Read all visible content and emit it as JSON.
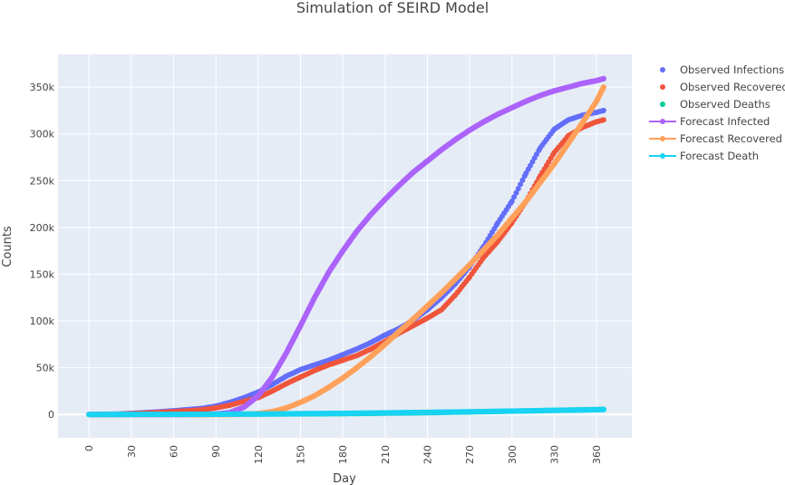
{
  "chart_data": {
    "type": "scatter",
    "title": "Simulation of SEIRD Model",
    "xlabel": "Day",
    "ylabel": "Counts",
    "xlim": [
      -22,
      385
    ],
    "ylim": [
      -25000,
      385000
    ],
    "x_ticks": [
      0,
      30,
      60,
      90,
      120,
      150,
      180,
      210,
      240,
      270,
      300,
      330,
      360
    ],
    "x_tick_labels": [
      "0",
      "30",
      "60",
      "90",
      "120",
      "150",
      "180",
      "210",
      "240",
      "270",
      "300",
      "330",
      "360"
    ],
    "y_ticks": [
      0,
      50000,
      100000,
      150000,
      200000,
      250000,
      300000,
      350000
    ],
    "y_tick_labels": [
      "0",
      "50k",
      "100k",
      "150k",
      "200k",
      "250k",
      "300k",
      "350k"
    ],
    "grid": true,
    "legend_position": "right",
    "series": [
      {
        "name": "Observed Infections",
        "mode": "markers",
        "color": "#636efa",
        "x": [
          0,
          20,
          40,
          60,
          80,
          90,
          100,
          110,
          120,
          130,
          140,
          150,
          160,
          170,
          180,
          190,
          200,
          210,
          220,
          230,
          240,
          250,
          260,
          270,
          280,
          290,
          300,
          310,
          320,
          330,
          340,
          350,
          360,
          365
        ],
        "y": [
          0,
          500,
          2000,
          4000,
          6500,
          9000,
          13000,
          18000,
          24000,
          32000,
          41000,
          48000,
          53000,
          58000,
          64000,
          70000,
          77000,
          85000,
          92000,
          101000,
          112000,
          125000,
          140000,
          158000,
          180000,
          205000,
          228000,
          258000,
          285000,
          305000,
          315000,
          320000,
          323000,
          325000
        ]
      },
      {
        "name": "Observed Recovered",
        "mode": "markers",
        "color": "#ef553b",
        "x": [
          0,
          20,
          40,
          60,
          80,
          90,
          100,
          110,
          120,
          130,
          140,
          150,
          160,
          170,
          180,
          190,
          200,
          210,
          220,
          230,
          240,
          250,
          260,
          270,
          280,
          290,
          300,
          310,
          320,
          330,
          340,
          350,
          360,
          365
        ],
        "y": [
          0,
          300,
          1500,
          3000,
          5000,
          7000,
          10000,
          14000,
          18000,
          25000,
          33000,
          40000,
          47000,
          53000,
          58000,
          63000,
          70000,
          78000,
          87000,
          95000,
          103000,
          112000,
          128000,
          147000,
          168000,
          185000,
          205000,
          228000,
          255000,
          280000,
          298000,
          307000,
          313000,
          315000
        ]
      },
      {
        "name": "Observed Deaths",
        "mode": "markers",
        "color": "#00cc96",
        "x": [
          0,
          60,
          120,
          180,
          240,
          300,
          365
        ],
        "y": [
          0,
          100,
          400,
          800,
          1800,
          3500,
          5500
        ]
      },
      {
        "name": "Forecast Infected",
        "mode": "lines+markers",
        "color": "#ab63fa",
        "x": [
          0,
          20,
          40,
          60,
          80,
          90,
          100,
          110,
          120,
          130,
          140,
          150,
          160,
          170,
          180,
          190,
          200,
          210,
          220,
          230,
          240,
          250,
          260,
          270,
          280,
          290,
          300,
          310,
          320,
          330,
          340,
          350,
          360,
          365
        ],
        "y": [
          0,
          0,
          0,
          0,
          100,
          500,
          2000,
          8000,
          20000,
          40000,
          66000,
          95000,
          125000,
          152000,
          175000,
          196000,
          214000,
          230000,
          245000,
          259000,
          271000,
          283000,
          294000,
          304000,
          313000,
          321000,
          328000,
          335000,
          341000,
          346000,
          350000,
          354000,
          357000,
          359000
        ]
      },
      {
        "name": "Forecast Recovered",
        "mode": "lines+markers",
        "color": "#ffa15a",
        "x": [
          0,
          100,
          110,
          120,
          130,
          140,
          150,
          160,
          170,
          180,
          190,
          200,
          210,
          220,
          230,
          240,
          250,
          260,
          270,
          280,
          290,
          300,
          310,
          320,
          330,
          340,
          350,
          360,
          365
        ],
        "y": [
          0,
          0,
          200,
          1000,
          3000,
          7000,
          13000,
          20000,
          29000,
          39000,
          50000,
          62000,
          75000,
          89000,
          102000,
          116000,
          130000,
          145000,
          160000,
          176000,
          192000,
          210000,
          228000,
          248000,
          268000,
          290000,
          312000,
          335000,
          350000
        ]
      },
      {
        "name": "Forecast Death",
        "mode": "lines+markers",
        "color": "#19d3f3",
        "x": [
          0,
          60,
          120,
          180,
          240,
          300,
          365
        ],
        "y": [
          0,
          100,
          500,
          1200,
          2200,
          3600,
          5200
        ]
      }
    ]
  }
}
